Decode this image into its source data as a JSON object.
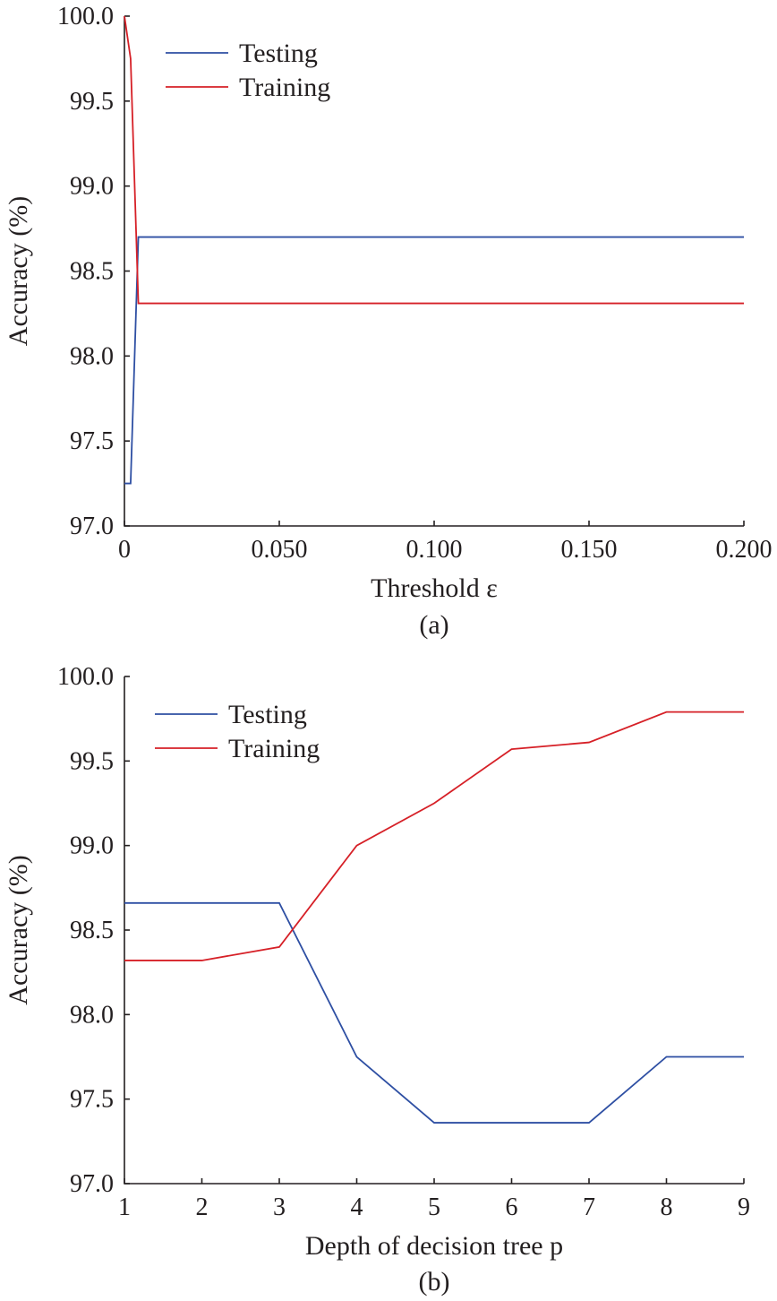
{
  "chart_data": [
    {
      "type": "line",
      "caption": "(a)",
      "xlabel": "Threshold ε",
      "ylabel": "Accuracy (%)",
      "xlim": [
        0,
        0.2
      ],
      "ylim": [
        97.0,
        100.0
      ],
      "xticks": [
        0,
        0.05,
        0.1,
        0.15,
        0.2
      ],
      "xtick_labels": [
        "0",
        "0.050",
        "0.100",
        "0.150",
        "0.200"
      ],
      "yticks": [
        97.0,
        97.5,
        98.0,
        98.5,
        99.0,
        99.5,
        100.0
      ],
      "ytick_labels": [
        "97.0",
        "97.5",
        "98.0",
        "98.5",
        "99.0",
        "99.5",
        "100.0"
      ],
      "grid": false,
      "legend_position": "top-left",
      "series": [
        {
          "name": "Testing",
          "color": "#2e4fa3",
          "x": [
            0,
            0.002,
            0.0045,
            0.2
          ],
          "y": [
            97.25,
            97.25,
            98.7,
            98.7
          ]
        },
        {
          "name": "Training",
          "color": "#d62027",
          "x": [
            0,
            0.002,
            0.0045,
            0.2
          ],
          "y": [
            100.0,
            99.75,
            98.31,
            98.31
          ]
        }
      ]
    },
    {
      "type": "line",
      "caption": "(b)",
      "xlabel": "Depth of decision tree p",
      "ylabel": "Accuracy (%)",
      "xlim": [
        1,
        9
      ],
      "ylim": [
        97.0,
        100.0
      ],
      "xticks": [
        1,
        2,
        3,
        4,
        5,
        6,
        7,
        8,
        9
      ],
      "xtick_labels": [
        "1",
        "2",
        "3",
        "4",
        "5",
        "6",
        "7",
        "8",
        "9"
      ],
      "yticks": [
        97.0,
        97.5,
        98.0,
        98.5,
        99.0,
        99.5,
        100.0
      ],
      "ytick_labels": [
        "97.0",
        "97.5",
        "98.0",
        "98.5",
        "99.0",
        "99.5",
        "100.0"
      ],
      "grid": false,
      "legend_position": "top-left",
      "series": [
        {
          "name": "Testing",
          "color": "#2e4fa3",
          "x": [
            1,
            2,
            3,
            4,
            5,
            6,
            7,
            8,
            9
          ],
          "y": [
            98.66,
            98.66,
            98.66,
            97.75,
            97.36,
            97.36,
            97.36,
            97.75,
            97.75
          ]
        },
        {
          "name": "Training",
          "color": "#d62027",
          "x": [
            1,
            2,
            3,
            4,
            5,
            6,
            7,
            8,
            9
          ],
          "y": [
            98.32,
            98.32,
            98.4,
            99.0,
            99.25,
            99.57,
            99.61,
            99.79,
            99.79
          ]
        }
      ]
    }
  ]
}
